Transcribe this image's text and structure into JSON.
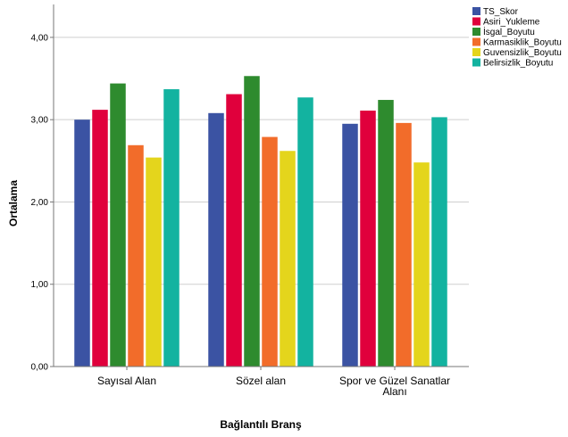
{
  "chart_data": {
    "type": "bar",
    "xlabel": "Bağlantılı Branş",
    "ylabel": "Ortalama",
    "ylim": [
      0,
      4.4
    ],
    "yticks": [
      "0,00",
      "1,00",
      "2,00",
      "3,00",
      "4,00"
    ],
    "ytick_values": [
      0,
      1,
      2,
      3,
      4
    ],
    "grid": true,
    "legend_position": "top-right",
    "categories": [
      [
        "Sayısal Alan"
      ],
      [
        "Sözel alan"
      ],
      [
        "Spor ve Güzel Sanatlar",
        "Alanı"
      ]
    ],
    "series": [
      {
        "name": "TS_Skor",
        "color": "#3b53a3",
        "values": [
          3.0,
          3.08,
          2.95
        ]
      },
      {
        "name": "Asiri_Yukleme",
        "color": "#e0003c",
        "values": [
          3.12,
          3.31,
          3.11
        ]
      },
      {
        "name": "İsgal_Boyutu",
        "color": "#2e8b2e",
        "values": [
          3.44,
          3.53,
          3.24
        ]
      },
      {
        "name": "Karmasiklik_Boyutu",
        "color": "#f26c2a",
        "values": [
          2.69,
          2.79,
          2.96
        ]
      },
      {
        "name": "Guvensizlik_Boyutu",
        "color": "#e4d51c",
        "values": [
          2.54,
          2.62,
          2.48
        ]
      },
      {
        "name": "Belirsizlik_Boyutu",
        "color": "#13b3a0",
        "values": [
          3.37,
          3.27,
          3.03
        ]
      }
    ]
  }
}
